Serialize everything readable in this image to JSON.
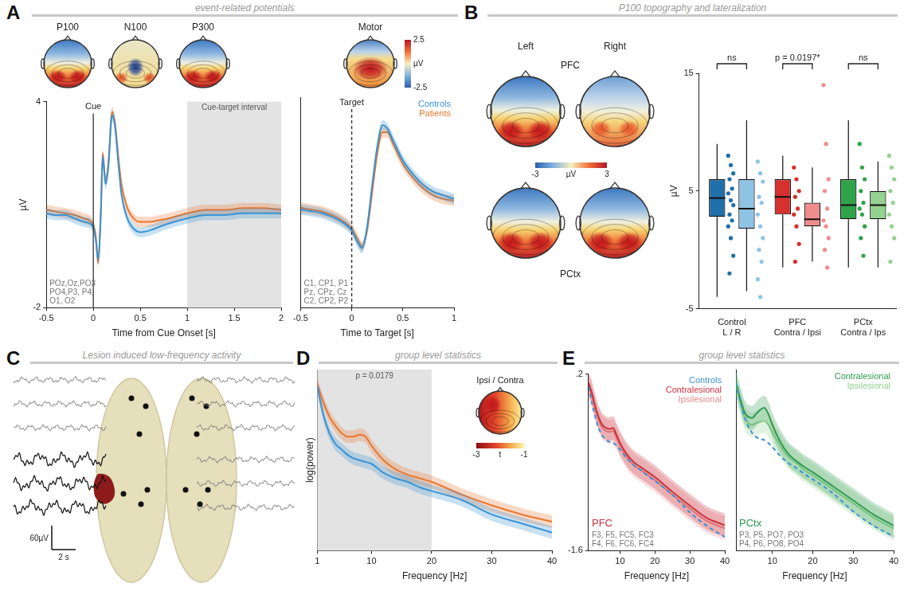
{
  "panels": [
    {
      "letter": "A",
      "header": "event-related potentials",
      "topomaps": [
        "P100",
        "N100",
        "P300",
        "Motor"
      ],
      "colorbar": {
        "range": [
          -2.5,
          2.5
        ],
        "ticks": [
          2.5,
          -2.5
        ],
        "label": "µV"
      }
    },
    {
      "letter": "B",
      "header": "P100 topography and lateralization",
      "topomap_columns": [
        "Left",
        "Right"
      ],
      "topomap_rows": [
        "PFC",
        "PCtx"
      ],
      "colorbar": {
        "range": [
          -3,
          3
        ],
        "ticks": [
          -3,
          3
        ],
        "label": "µV"
      }
    },
    {
      "letter": "C",
      "header": "Lesion induced low-frequency activity",
      "scale_bar": {
        "amplitude": "60µV",
        "time": "2 s"
      }
    },
    {
      "letter": "D",
      "header": "group level statistics",
      "inset": {
        "title": "Ipsi / Contra",
        "colorbar": {
          "range": [
            -3,
            -1
          ],
          "ticks": [
            -3,
            -1
          ],
          "label": "t"
        }
      }
    },
    {
      "letter": "E",
      "header": "group level statistics"
    }
  ],
  "chart_data": [
    {
      "panel": "A",
      "type": "line",
      "x_label": "Time from Cue Onset [s]",
      "y_label": "µV",
      "x": [
        -0.5,
        -0.4,
        -0.3,
        -0.2,
        -0.1,
        0,
        0.03,
        0.05,
        0.08,
        0.1,
        0.13,
        0.16,
        0.2,
        0.23,
        0.27,
        0.3,
        0.35,
        0.4,
        0.5,
        0.6,
        0.7,
        0.8,
        1.0,
        1.2,
        1.4,
        1.6,
        1.8,
        2.0
      ],
      "series": [
        {
          "color": "#3a93d3",
          "error": 0.15,
          "values": [
            0.75,
            0.7,
            0.7,
            0.6,
            0.5,
            0.35,
            -0.1,
            -0.6,
            0.7,
            2.4,
            1.6,
            2.1,
            3.6,
            3.3,
            2.1,
            1.3,
            0.7,
            0.4,
            0.2,
            0.25,
            0.35,
            0.45,
            0.6,
            0.7,
            0.7,
            0.75,
            0.75,
            0.75
          ]
        },
        {
          "color": "#e8762f",
          "error": 0.15,
          "values": [
            0.85,
            0.8,
            0.75,
            0.7,
            0.6,
            0.4,
            0.0,
            -0.7,
            0.8,
            2.5,
            1.7,
            2.2,
            3.7,
            3.4,
            2.3,
            1.6,
            1.0,
            0.7,
            0.5,
            0.5,
            0.55,
            0.6,
            0.75,
            0.85,
            0.85,
            0.9,
            0.9,
            0.85
          ]
        }
      ],
      "xlim": [
        -0.5,
        2
      ],
      "xticks": [
        -0.5,
        0,
        0.5,
        1,
        1.5,
        2
      ],
      "ylim": [
        -2,
        4
      ],
      "yticks": [
        -2,
        4
      ],
      "grid": false,
      "annotations": [
        {
          "x": [
            1,
            2
          ],
          "text": "Cue-target interval"
        },
        {
          "x": 0,
          "text": "Cue"
        },
        {
          "text": "POz,Oz,PO3\nPO4,P3, P4,\nO1, O2"
        }
      ]
    },
    {
      "panel": "A",
      "type": "line",
      "x_label": "Time to Target [s]",
      "x": [
        -0.5,
        -0.4,
        -0.3,
        -0.2,
        -0.1,
        0,
        0.05,
        0.1,
        0.15,
        0.2,
        0.25,
        0.3,
        0.35,
        0.4,
        0.5,
        0.6,
        0.7,
        0.8,
        0.9,
        1.0
      ],
      "series": [
        {
          "name": "Controls",
          "color": "#3a93d3",
          "error": 0.15,
          "values": [
            0.8,
            0.75,
            0.7,
            0.6,
            0.45,
            0.2,
            -0.1,
            -0.3,
            0.3,
            1.5,
            2.6,
            3.2,
            3.1,
            2.8,
            2.2,
            1.8,
            1.5,
            1.3,
            1.2,
            1.1
          ]
        },
        {
          "name": "Patients",
          "color": "#e8762f",
          "error": 0.15,
          "values": [
            0.85,
            0.8,
            0.75,
            0.65,
            0.5,
            0.25,
            0.0,
            -0.25,
            0.2,
            1.3,
            2.4,
            3.0,
            3.0,
            2.7,
            2.1,
            1.7,
            1.4,
            1.2,
            1.1,
            1.05
          ]
        }
      ],
      "xlim": [
        -0.5,
        1
      ],
      "xticks": [
        -0.5,
        0,
        0.5,
        1
      ],
      "ylim": [
        -2,
        4
      ],
      "grid": false,
      "tick_labels": "x",
      "legend": "top-right",
      "annotations": [
        {
          "x": 0,
          "text": "Target",
          "line_style": "dashed"
        },
        {
          "text": "C1, CP1, P1\nPz, CPz, Cz\nC2, CP2, P2"
        }
      ]
    },
    {
      "panel": "B",
      "type": "box",
      "y_label": "µV",
      "categories": [
        "Control\nL / R",
        "PFC\nContra / Ipsi",
        "PCtx\nContra / Ips"
      ],
      "series": [
        {
          "colors": [
            "#1f6fa8",
            "#d6302f",
            "#2fa34a"
          ],
          "boxes": [
            {
              "min": -4,
              "q1": 2.8,
              "median": 4.4,
              "q3": 6.0,
              "max": 9.0,
              "points": [
                8.0,
                7.2,
                6.5,
                6.0,
                5.2,
                4.8,
                4.2,
                3.8,
                3.0,
                2.5,
                2.0,
                1.0,
                -0.5,
                -2.0
              ]
            },
            {
              "min": -1.5,
              "q1": 3.0,
              "median": 4.5,
              "q3": 6.0,
              "max": 8.0,
              "points": [
                7.0,
                6.0,
                5.0,
                4.5,
                3.5,
                3.0,
                2.0,
                0.5,
                -1.0
              ]
            },
            {
              "min": -1.5,
              "q1": 2.6,
              "median": 3.8,
              "q3": 6.0,
              "max": 11.0,
              "points": [
                9.0,
                7.0,
                6.0,
                5.0,
                4.0,
                3.5,
                3.0,
                2.0,
                1.0,
                -0.5
              ]
            }
          ]
        },
        {
          "colors": [
            "#8fc3e3",
            "#f08c8c",
            "#93d28f"
          ],
          "boxes": [
            {
              "min": -3.5,
              "q1": 1.8,
              "median": 3.5,
              "q3": 6.0,
              "max": 11.0,
              "points": [
                7.5,
                6.5,
                5.8,
                4.5,
                4.0,
                3.0,
                2.0,
                1.0,
                0.0,
                -1.0,
                -2.5,
                -4.0
              ]
            },
            {
              "min": -1.0,
              "q1": 2.0,
              "median": 2.6,
              "q3": 4.0,
              "max": 7.0,
              "points": [
                14.0,
                9.0,
                6.0,
                5.0,
                3.5,
                2.5,
                2.0,
                1.0,
                0.0,
                -1.5
              ]
            },
            {
              "min": -1.5,
              "q1": 2.6,
              "median": 3.8,
              "q3": 5.0,
              "max": 7.5,
              "points": [
                8.0,
                7.0,
                6.0,
                5.0,
                4.0,
                3.0,
                2.0,
                1.0,
                -1.0
              ]
            }
          ]
        }
      ],
      "ylim": [
        -5,
        15
      ],
      "yticks": [
        -5,
        5,
        15
      ],
      "grid": false,
      "annotations": [
        "ns",
        "p = 0.0197*",
        "ns"
      ]
    },
    {
      "panel": "D",
      "type": "line",
      "x_label": "Frequency [Hz]",
      "y_label": "log(power)",
      "x": [
        1,
        2,
        3,
        4,
        5,
        6,
        7,
        8,
        9,
        10,
        12,
        14,
        16,
        18,
        20,
        25,
        30,
        35,
        40
      ],
      "series": [
        {
          "color": "#3a93d3",
          "error": 0.35,
          "values": [
            9.1,
            7.5,
            6.5,
            5.9,
            5.6,
            5.3,
            5.1,
            5.0,
            4.9,
            4.8,
            4.3,
            4.0,
            3.8,
            3.5,
            3.3,
            2.8,
            2.0,
            1.5,
            1.0
          ]
        },
        {
          "color": "#e8762f",
          "error": 0.35,
          "values": [
            9.2,
            8.2,
            7.4,
            6.9,
            6.5,
            6.3,
            6.3,
            6.4,
            6.3,
            5.8,
            5.0,
            4.5,
            4.2,
            4.0,
            3.8,
            3.1,
            2.5,
            2.0,
            1.6
          ]
        }
      ],
      "xlim": [
        1,
        40
      ],
      "xticks": [
        1,
        10,
        20,
        30,
        40
      ],
      "ylim": [
        0,
        10
      ],
      "grid": false,
      "tick_labels": "x",
      "annotations": [
        {
          "x": [
            1,
            20
          ],
          "text": "p = 0.0179"
        }
      ]
    },
    {
      "panel": "E",
      "type": "line",
      "title": "PFC",
      "x_label": "Frequency [Hz]",
      "x": [
        1,
        2,
        3,
        4,
        5,
        6,
        7,
        8,
        9,
        10,
        12,
        14,
        16,
        18,
        20,
        25,
        30,
        35,
        40
      ],
      "series": [
        {
          "name": "Controls",
          "color": "#3a93d3",
          "line_style": "dashed",
          "values": [
            0.07,
            -0.1,
            -0.25,
            -0.36,
            -0.43,
            -0.47,
            -0.49,
            -0.5,
            -0.53,
            -0.57,
            -0.66,
            -0.73,
            -0.78,
            -0.84,
            -0.89,
            -1.03,
            -1.21,
            -1.35,
            -1.46
          ]
        },
        {
          "name": "Contralesional",
          "color": "#c8323c",
          "error": 0.12,
          "values": [
            0.11,
            0.0,
            -0.14,
            -0.25,
            -0.32,
            -0.35,
            -0.36,
            -0.35,
            -0.42,
            -0.5,
            -0.62,
            -0.7,
            -0.75,
            -0.8,
            -0.85,
            -1.0,
            -1.14,
            -1.27,
            -1.34
          ]
        },
        {
          "name": "Ipsilesional",
          "color": "#e58a8c",
          "error": 0.12,
          "values": [
            0.08,
            -0.03,
            -0.17,
            -0.28,
            -0.35,
            -0.38,
            -0.39,
            -0.38,
            -0.45,
            -0.53,
            -0.65,
            -0.73,
            -0.78,
            -0.83,
            -0.88,
            -1.03,
            -1.17,
            -1.3,
            -1.37
          ]
        }
      ],
      "xlim": [
        1,
        40
      ],
      "xticks": [
        10,
        20,
        30,
        40
      ],
      "ylim": [
        -1.6,
        0.2
      ],
      "yticks": [
        {
          "value": 0.2,
          "label": ".2"
        },
        -1.6
      ],
      "grid": false,
      "legend": "top-right",
      "annotations": [
        {
          "text": "F3, F5, FC5, FC3\nF4, F6, FC6, FC4"
        }
      ]
    },
    {
      "panel": "E",
      "type": "line",
      "title": "PCtx",
      "x_label": "Frequency [Hz]",
      "x": [
        1,
        2,
        3,
        4,
        5,
        6,
        7,
        8,
        9,
        10,
        12,
        14,
        16,
        18,
        20,
        25,
        30,
        35,
        40
      ],
      "series": [
        {
          "color": "#3a93d3",
          "line_style": "dashed",
          "values": [
            0.07,
            -0.1,
            -0.25,
            -0.36,
            -0.43,
            -0.47,
            -0.49,
            -0.5,
            -0.53,
            -0.57,
            -0.66,
            -0.73,
            -0.78,
            -0.84,
            -0.89,
            -1.03,
            -1.21,
            -1.35,
            -1.46
          ]
        },
        {
          "name": "Contralesional",
          "color": "#2d9a4e",
          "error": 0.12,
          "values": [
            0.07,
            -0.08,
            -0.21,
            -0.27,
            -0.28,
            -0.24,
            -0.2,
            -0.18,
            -0.24,
            -0.35,
            -0.52,
            -0.64,
            -0.71,
            -0.77,
            -0.82,
            -0.96,
            -1.1,
            -1.24,
            -1.35
          ]
        },
        {
          "name": "Ipsilesional",
          "color": "#8fd08f",
          "error": 0.12,
          "values": [
            0.05,
            -0.11,
            -0.26,
            -0.33,
            -0.35,
            -0.33,
            -0.32,
            -0.31,
            -0.35,
            -0.42,
            -0.56,
            -0.67,
            -0.73,
            -0.8,
            -0.85,
            -0.99,
            -1.13,
            -1.27,
            -1.38
          ]
        }
      ],
      "xlim": [
        1,
        40
      ],
      "xticks": [
        10,
        20,
        30,
        40
      ],
      "ylim": [
        -1.6,
        0.2
      ],
      "grid": false,
      "tick_labels": "x",
      "legend": "top-right",
      "annotations": [
        {
          "text": "P3, P5, PO7, PO3\nP4, P6, PO8, PO4"
        }
      ]
    }
  ]
}
